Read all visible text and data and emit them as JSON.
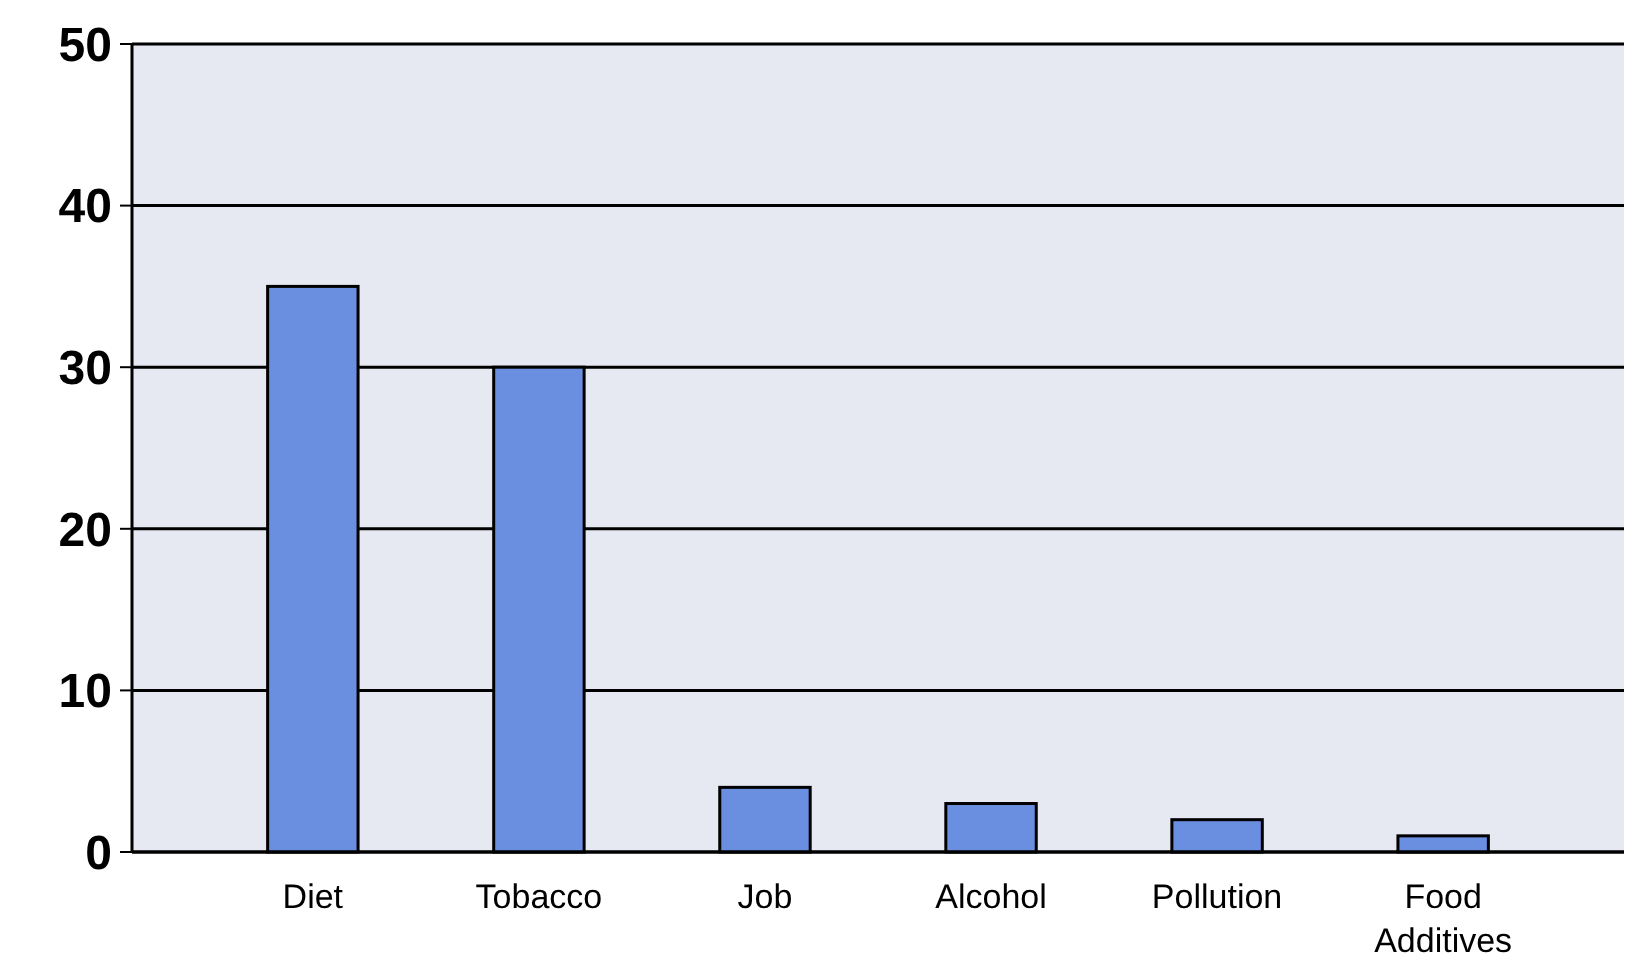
{
  "chart_data": {
    "type": "bar",
    "categories": [
      "Diet",
      "Tobacco",
      "Job",
      "Alcohol",
      "Pollution",
      "Food Additives"
    ],
    "values": [
      35,
      30,
      4,
      3,
      2,
      1
    ],
    "color": "#6a8ee0",
    "ylim": [
      0,
      50
    ],
    "yticks": [
      0,
      10,
      20,
      30,
      40,
      50
    ],
    "grid": "y"
  }
}
